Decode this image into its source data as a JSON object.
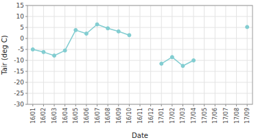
{
  "chart_data": {
    "type": "line",
    "xlabel": "Date",
    "ylabel": "Tair (deg C)",
    "categories": [
      "16/01",
      "16/02",
      "16/03",
      "16/04",
      "16/05",
      "16/06",
      "16/07",
      "16/08",
      "16/09",
      "16/10",
      "16/11",
      "16/12",
      "17/01",
      "17/02",
      "17/03",
      "17/04",
      "17/05",
      "17/06",
      "17/07",
      "17/08",
      "17/09"
    ],
    "series": [
      {
        "color": "#82cdd1",
        "marker": "circle",
        "values": [
          -5.0,
          -6.2,
          -7.8,
          -5.5,
          3.8,
          2.2,
          6.4,
          4.6,
          3.2,
          1.5,
          null,
          null,
          -11.5,
          -8.5,
          -12.5,
          -10.0,
          null,
          null,
          null,
          null,
          5.2
        ]
      }
    ],
    "ylim": [
      -30,
      15
    ],
    "yticks": [
      -30,
      -25,
      -20,
      -15,
      -10,
      -5,
      0,
      5,
      10,
      15
    ],
    "grid": true
  }
}
